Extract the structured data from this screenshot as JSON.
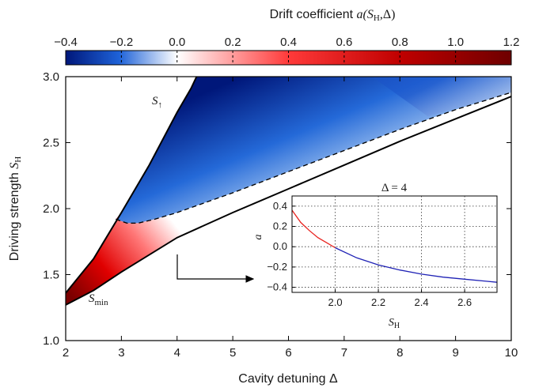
{
  "chart_data": [
    {
      "type": "heatmap",
      "title": "",
      "colorbar": {
        "label_prefix": "Drift coefficient ",
        "label_math": "a(S",
        "label_sub": "H",
        "label_tail": ",Δ)",
        "range": [
          -0.4,
          1.2
        ],
        "ticks": [
          "−0.4",
          "−0.2",
          "0.0",
          "0.2",
          "0.4",
          "0.6",
          "0.8",
          "1.0",
          "1.2"
        ],
        "tick_values": [
          -0.4,
          -0.2,
          0.0,
          0.2,
          0.4,
          0.6,
          0.8,
          1.0,
          1.2
        ],
        "dashed_ticks": true,
        "colors": [
          "#00177a",
          "#1e62d8",
          "#ffffff",
          "#ff3a3a",
          "#c00000",
          "#6e0000"
        ]
      },
      "xlabel": "Cavity detuning Δ",
      "ylabel_prefix": "Driving strength ",
      "ylabel_math": "S",
      "ylabel_sub": "H",
      "xlim": [
        2,
        10
      ],
      "ylim": [
        1.0,
        3.0
      ],
      "xticks": [
        "2",
        "3",
        "4",
        "5",
        "6",
        "7",
        "8",
        "9",
        "10"
      ],
      "xtick_values": [
        2,
        3,
        4,
        5,
        6,
        7,
        8,
        9,
        10
      ],
      "yticks": [
        "1.0",
        "1.5",
        "2.0",
        "2.5",
        "3.0"
      ],
      "ytick_values": [
        1.0,
        1.5,
        2.0,
        2.5,
        3.0
      ],
      "boundaries": [
        {
          "label": "S",
          "label_sub": "min",
          "style": "solid",
          "x": [
            2.0,
            2.5,
            3.0,
            4.0,
            5.0,
            6.0,
            7.0,
            8.0,
            9.0,
            10.0
          ],
          "y": [
            1.27,
            1.38,
            1.52,
            1.78,
            1.97,
            2.15,
            2.33,
            2.51,
            2.68,
            2.85
          ]
        },
        {
          "label": "S",
          "label_sub": "↑",
          "style": "solid",
          "x": [
            2.0,
            2.5,
            3.0,
            3.5,
            4.0,
            4.25,
            4.35
          ],
          "y": [
            1.36,
            1.62,
            1.97,
            2.33,
            2.73,
            2.91,
            3.0
          ]
        },
        {
          "label": "",
          "style": "dashed",
          "x": [
            2.9,
            3.1,
            3.3,
            3.6,
            4.0,
            5.0,
            6.0,
            7.0,
            8.0,
            9.0,
            10.0
          ],
          "y": [
            1.92,
            1.89,
            1.89,
            1.92,
            1.97,
            2.12,
            2.28,
            2.44,
            2.6,
            2.75,
            2.88
          ]
        }
      ]
    },
    {
      "type": "line",
      "title": "Δ = 4",
      "xlabel": "S",
      "xlabel_sub": "H",
      "ylabel": "a",
      "xlim": [
        1.8,
        2.75
      ],
      "ylim": [
        -0.45,
        0.5
      ],
      "xticks": [
        "2.0",
        "2.2",
        "2.4",
        "2.6"
      ],
      "xtick_values": [
        2.0,
        2.2,
        2.4,
        2.6
      ],
      "yticks": [
        "0.4",
        "0.2",
        "0.0",
        "−0.2",
        "−0.4"
      ],
      "ytick_values": [
        0.4,
        0.2,
        0.0,
        -0.2,
        -0.4
      ],
      "grid": true,
      "series": [
        {
          "color": "#e8231f",
          "x": [
            1.8,
            1.84,
            1.88,
            1.92,
            1.96,
            2.0
          ],
          "y": [
            0.36,
            0.24,
            0.16,
            0.09,
            0.04,
            -0.01
          ]
        },
        {
          "color": "#1f22b5",
          "x": [
            2.0,
            2.1,
            2.2,
            2.3,
            2.4,
            2.5,
            2.6,
            2.7,
            2.75
          ],
          "y": [
            -0.01,
            -0.11,
            -0.18,
            -0.23,
            -0.27,
            -0.3,
            -0.32,
            -0.34,
            -0.35
          ]
        }
      ]
    }
  ]
}
